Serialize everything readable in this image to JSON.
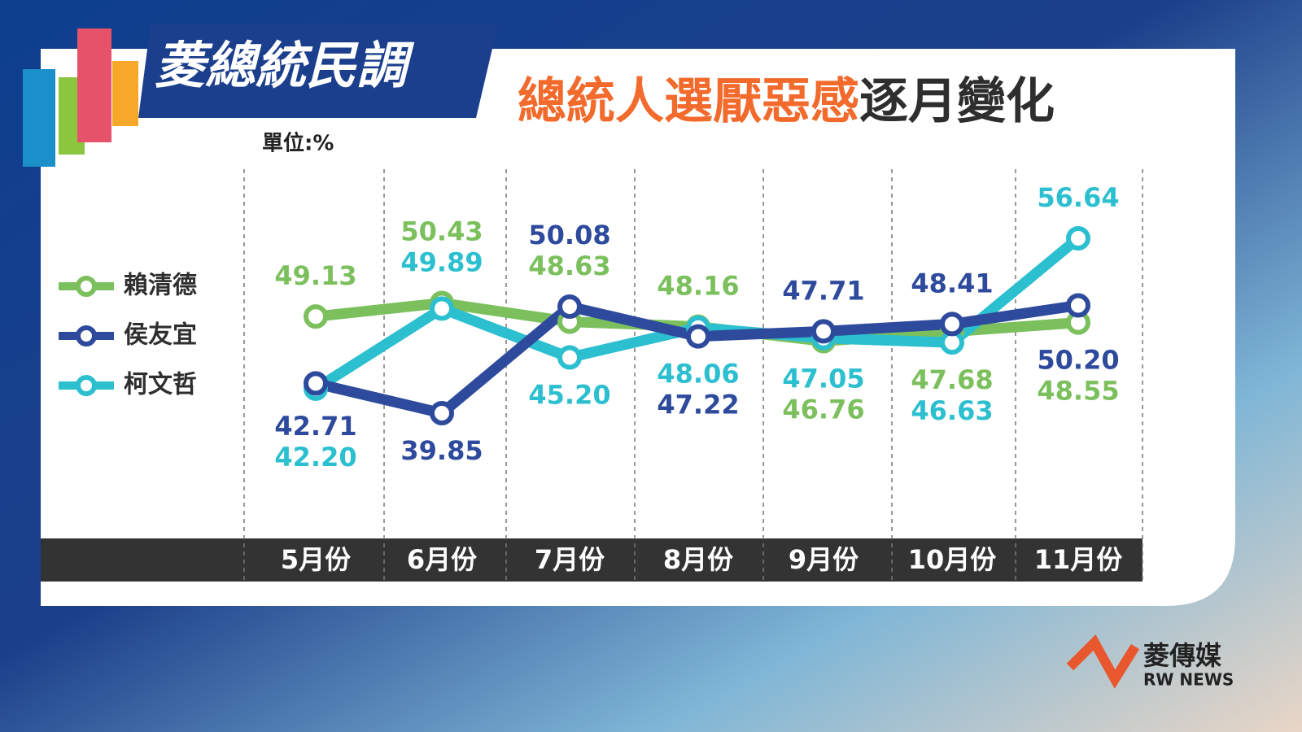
{
  "logo_title": "菱總統民調",
  "brand": {
    "name": "菱傳媒",
    "sub": "RW NEWS"
  },
  "chart_data": {
    "type": "line",
    "title_parts": [
      "總統人選厭惡感",
      "逐月變化"
    ],
    "unit_note": "單位:%",
    "categories": [
      "5月份",
      "6月份",
      "7月份",
      "8月份",
      "9月份",
      "10月份",
      "11月份"
    ],
    "series": [
      {
        "name": "賴清德",
        "color": "#7cc05e",
        "values": [
          49.13,
          50.43,
          48.63,
          48.16,
          46.76,
          47.68,
          48.55
        ],
        "value_labels": [
          "49.13",
          "50.43",
          "48.63",
          "48.16",
          "46.76",
          "47.68",
          "48.55"
        ]
      },
      {
        "name": "柯文哲",
        "color": "#2bbfcf",
        "values": [
          42.2,
          49.89,
          45.2,
          48.06,
          47.05,
          46.63,
          56.64
        ],
        "value_labels": [
          "42.20",
          "49.89",
          "45.20",
          "48.06",
          "47.05",
          "46.63",
          "56.64"
        ]
      },
      {
        "name": "侯友宜",
        "color": "#2e4a9c",
        "values": [
          42.71,
          39.85,
          50.08,
          47.22,
          47.71,
          48.41,
          50.2
        ],
        "value_labels": [
          "42.71",
          "39.85",
          "50.08",
          "47.22",
          "47.71",
          "48.41",
          "50.20"
        ]
      }
    ],
    "legend_order": [
      0,
      2,
      1
    ]
  }
}
